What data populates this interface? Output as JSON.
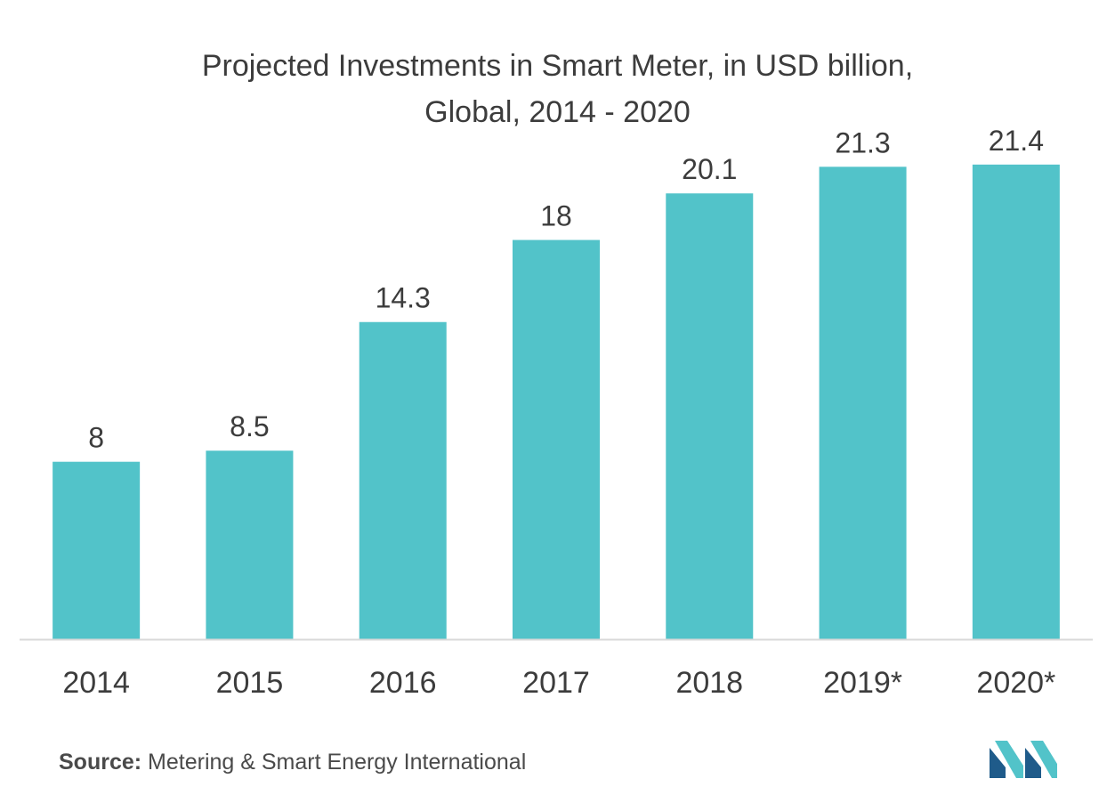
{
  "chart_data": {
    "type": "bar",
    "title_lines": [
      "Projected Investments in Smart Meter, in USD billion,",
      "Global, 2014 - 2020"
    ],
    "categories": [
      "2014",
      "2015",
      "2016",
      "2017",
      "2018",
      "2019*",
      "2020*"
    ],
    "values": [
      8,
      8.5,
      14.3,
      18,
      20.1,
      21.3,
      21.4
    ],
    "value_labels": [
      "8",
      "8.5",
      "14.3",
      "18",
      "20.1",
      "21.3",
      "21.4"
    ],
    "ylim": [
      0,
      23
    ],
    "grid": false,
    "legend": "none",
    "colors": {
      "bar": "#52c3c9",
      "axis": "#d9d9d9",
      "text": "#3c3c3c"
    }
  },
  "source": {
    "label": "Source:",
    "text": " Metering & Smart Energy International"
  },
  "logo": {
    "icon": "mordor-intelligence-logo-icon",
    "colors": [
      "#1f5b8a",
      "#52c3c9"
    ]
  }
}
